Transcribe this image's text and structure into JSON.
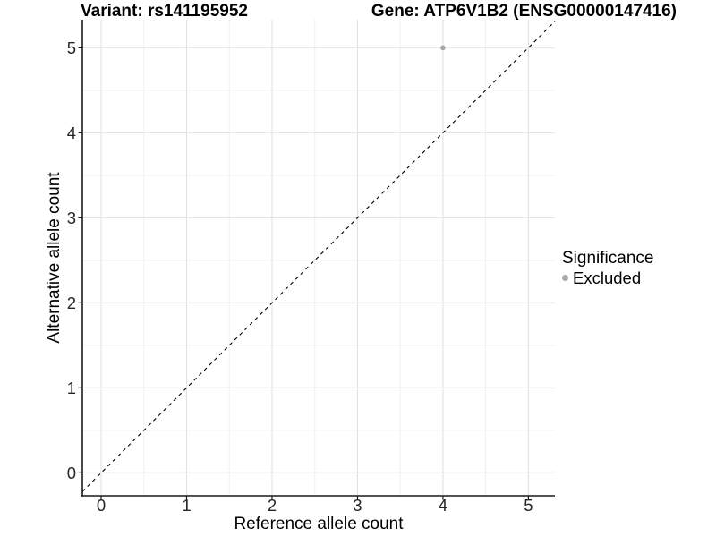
{
  "chart_data": {
    "type": "scatter",
    "title_left": "Variant: rs141195952",
    "title_right": "Gene: ATP6V1B2 (ENSG00000147416)",
    "xlabel": "Reference allele count",
    "ylabel": "Alternative allele count",
    "xlim": [
      -0.22,
      5.31
    ],
    "ylim": [
      -0.27,
      5.33
    ],
    "xticks": [
      0,
      1,
      2,
      3,
      4,
      5
    ],
    "yticks": [
      0,
      1,
      2,
      3,
      4,
      5
    ],
    "minor_xticks": [
      0.5,
      1.5,
      2.5,
      3.5,
      4.5
    ],
    "minor_yticks": [
      0.5,
      1.5,
      2.5,
      3.5,
      4.5
    ],
    "grid": "major+minor",
    "identity_line": {
      "style": "dashed",
      "slope": 1,
      "intercept": 0,
      "color": "#000000"
    },
    "series": [
      {
        "name": "Excluded",
        "color": "#a6a6a6",
        "points": [
          {
            "x": 4,
            "y": 5
          }
        ]
      }
    ],
    "legend": {
      "title": "Significance",
      "position": "right",
      "items": [
        {
          "label": "Excluded",
          "color": "#a9a9a9",
          "marker": "circle"
        }
      ]
    },
    "colors": {
      "background": "#ffffff",
      "major_grid": "#e2e2e2",
      "minor_grid": "#f0f0f0",
      "axis_line": "#1a1a1a",
      "tick_label": "#262626"
    }
  }
}
